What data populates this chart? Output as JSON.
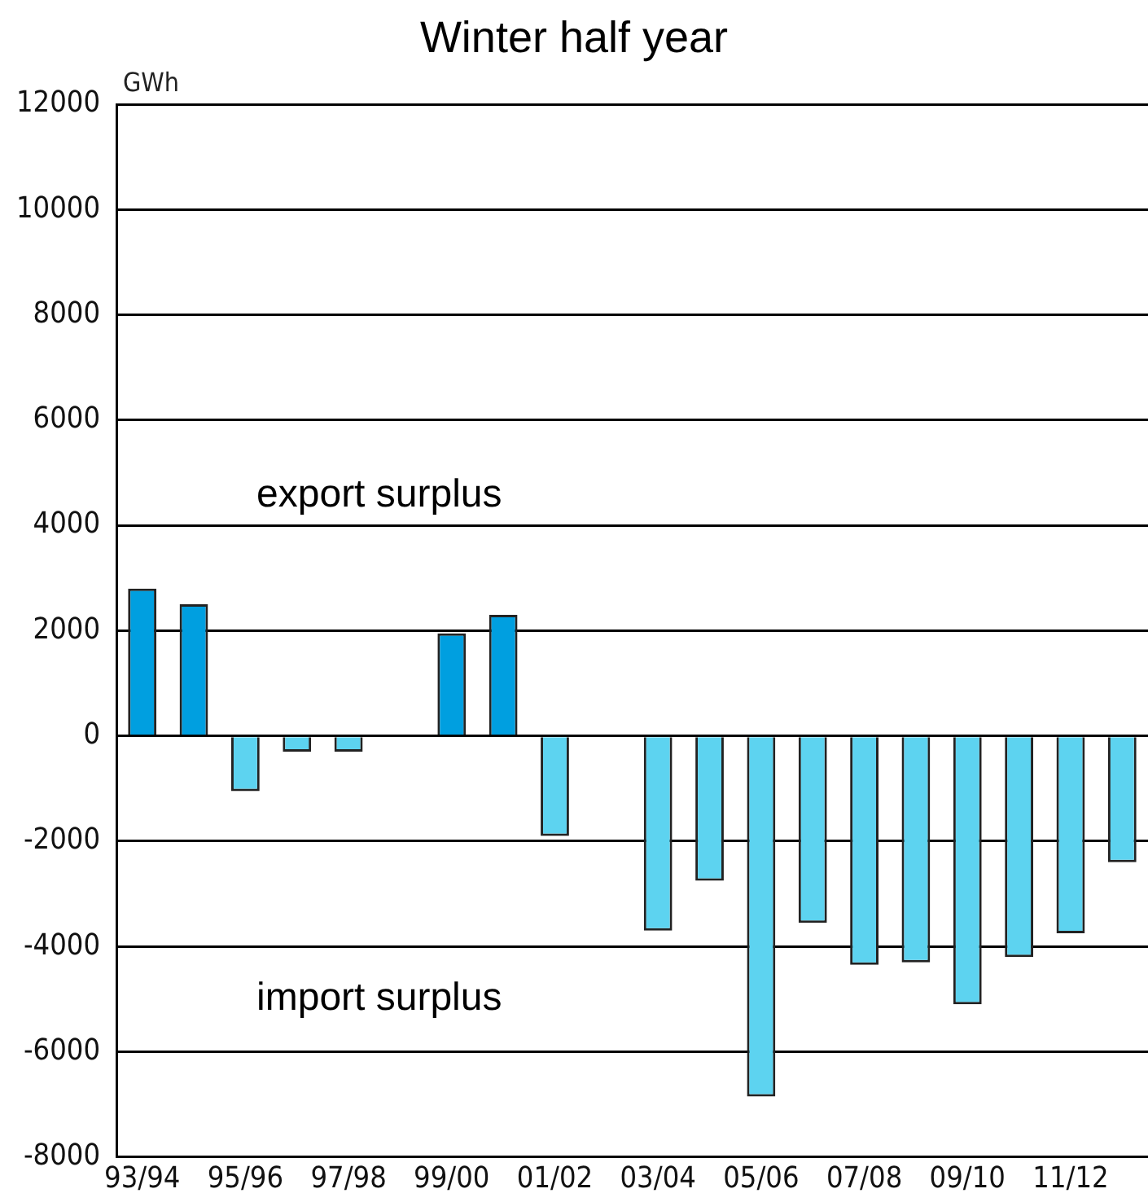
{
  "chart_data": {
    "type": "bar",
    "title": "Winter half year",
    "ylabel": "GWh",
    "categories": [
      "93/94",
      null,
      "95/96",
      null,
      "97/98",
      null,
      "99/00",
      null,
      "01/02",
      null,
      "03/04",
      null,
      "05/06",
      null,
      "07/08",
      null,
      "09/10",
      null,
      "11/12",
      null
    ],
    "values": [
      2800,
      2500,
      -1050,
      -300,
      -300,
      null,
      1950,
      2300,
      -1900,
      null,
      -3700,
      -2750,
      -6850,
      -3550,
      -4350,
      -4300,
      -5100,
      -4200,
      -3750,
      -2400
    ],
    "colors": [
      "#009fe0",
      "#009fe0",
      "#5dd3f0",
      "#5dd3f0",
      "#5dd3f0",
      "#5dd3f0",
      "#009fe0",
      "#009fe0",
      "#5dd3f0",
      "#5dd3f0",
      "#5dd3f0",
      "#5dd3f0",
      "#5dd3f0",
      "#5dd3f0",
      "#5dd3f0",
      "#5dd3f0",
      "#5dd3f0",
      "#5dd3f0",
      "#5dd3f0",
      "#5dd3f0"
    ],
    "ylim": [
      -8000,
      12000
    ],
    "yticks": [
      -8000,
      -6000,
      -4000,
      -2000,
      0,
      2000,
      4000,
      6000,
      8000,
      10000,
      12000
    ],
    "grid": "y",
    "legend": false,
    "annotations": [
      "export surplus",
      "import surplus"
    ]
  }
}
